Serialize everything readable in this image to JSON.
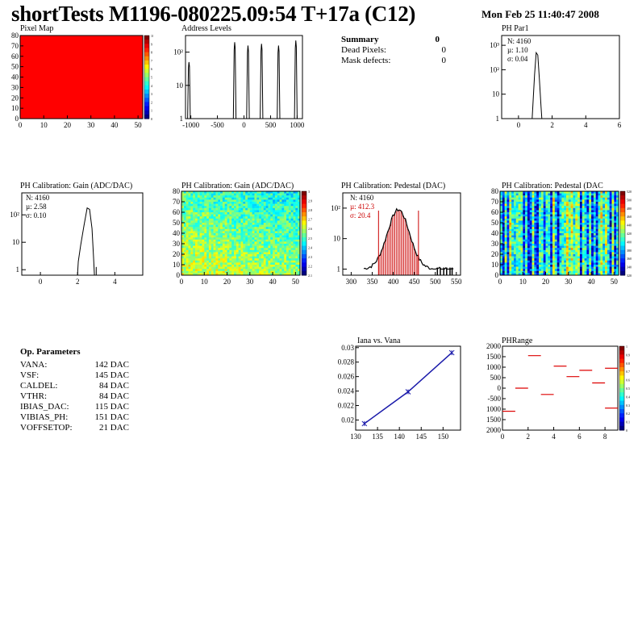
{
  "header": {
    "title": "shortTests M1196-080225.09:54 T+17a (C12)",
    "date": "Mon Feb 25 11:40:47 2008"
  },
  "summary": {
    "title": "Summary",
    "title_value": "0",
    "rows": [
      {
        "label": "Dead Pixels:",
        "value": "0"
      },
      {
        "label": "Mask defects:",
        "value": "0"
      }
    ]
  },
  "op_parameters": {
    "title": "Op. Parameters",
    "rows": [
      {
        "label": "VANA:",
        "value": "142 DAC"
      },
      {
        "label": "VSF:",
        "value": "145 DAC"
      },
      {
        "label": "CALDEL:",
        "value": "84 DAC"
      },
      {
        "label": "VTHR:",
        "value": "84 DAC"
      },
      {
        "label": "IBIAS_DAC:",
        "value": "115 DAC"
      },
      {
        "label": "VIBIAS_PH:",
        "value": "151 DAC"
      },
      {
        "label": "VOFFSETOP:",
        "value": "21 DAC"
      }
    ]
  },
  "chart_data": [
    {
      "id": "pixel_map",
      "type": "heatmap",
      "title": "Pixel Map",
      "x_ticks": [
        "0",
        "10",
        "20",
        "30",
        "40",
        "50"
      ],
      "y_ticks": [
        "0",
        "10",
        "20",
        "30",
        "40",
        "50",
        "60",
        "70",
        "80"
      ],
      "xlim": [
        0,
        52
      ],
      "ylim": [
        0,
        80
      ],
      "fill_color": "#ff0000",
      "palette_labels": [
        "10",
        "9",
        "8",
        "7",
        "6",
        "5",
        "4",
        "3",
        "2",
        "1",
        "0"
      ]
    },
    {
      "id": "address_levels",
      "type": "line",
      "title": "Address Levels",
      "y_scale": "log",
      "x_ticks": [
        "-1000",
        "-500",
        "0",
        "500",
        "1000"
      ],
      "y_ticks": [
        "1",
        "10",
        "10²"
      ],
      "xlim": [
        -1100,
        1100
      ],
      "ylim_log": [
        0,
        2.5
      ],
      "peaks": [
        {
          "x": -1035,
          "h": 1.7
        },
        {
          "x": -175,
          "h": 2.3
        },
        {
          "x": 75,
          "h": 2.2
        },
        {
          "x": 330,
          "h": 2.25
        },
        {
          "x": 650,
          "h": 2.2
        },
        {
          "x": 975,
          "h": 2.35
        }
      ]
    },
    {
      "id": "ph_par1",
      "type": "bar",
      "title": "PH Par1",
      "y_scale": "log",
      "x_ticks": [
        "0",
        "2",
        "4",
        "6"
      ],
      "y_ticks": [
        "1",
        "10",
        "10²",
        "10³"
      ],
      "xlim": [
        -1,
        6
      ],
      "ylim_log": [
        0,
        3.4
      ],
      "stats": [
        "N: 4160",
        "µ: 1.10",
        "σ: 0.04"
      ],
      "peak_center": 1.1,
      "peak_height_log": 2.7
    },
    {
      "id": "ph_gain",
      "type": "bar",
      "title": "PH Calibration: Gain (ADC/DAC)",
      "y_scale": "log",
      "x_ticks": [
        "0",
        "2",
        "4"
      ],
      "y_ticks": [
        "1",
        "10",
        "10²"
      ],
      "xlim": [
        -1,
        5.5
      ],
      "ylim_log": [
        -0.2,
        2.8
      ],
      "stats": [
        "N: 4160",
        "µ: 2.58",
        "σ: 0.10"
      ],
      "peak_center": 2.6,
      "peak_height_log": 2.25
    },
    {
      "id": "ph_gain_map",
      "type": "heatmap",
      "title": "PH Calibration: Gain (ADC/DAC)",
      "x_ticks": [
        "0",
        "10",
        "20",
        "30",
        "40",
        "50"
      ],
      "y_ticks": [
        "0",
        "10",
        "20",
        "30",
        "40",
        "50",
        "60",
        "70",
        "80"
      ],
      "xlim": [
        0,
        52
      ],
      "ylim": [
        0,
        80
      ],
      "palette_labels": [
        "3",
        "2.9",
        "2.8",
        "2.7",
        "2.6",
        "2.5",
        "2.4",
        "2.3",
        "2.2",
        "2.1"
      ]
    },
    {
      "id": "ph_pedestal",
      "type": "bar",
      "title": "PH Calibration: Pedestal (DAC)",
      "y_scale": "log",
      "x_ticks": [
        "300",
        "350",
        "400",
        "450",
        "500",
        "550"
      ],
      "y_ticks": [
        "1",
        "10",
        "10²"
      ],
      "xlim": [
        280,
        560
      ],
      "ylim_log": [
        -0.2,
        2.5
      ],
      "stats": [
        "N: 4160"
      ],
      "stats_red": [
        "µ: 412.3",
        "σ: 20.4"
      ],
      "mean": 412.3,
      "sigma": 20.4,
      "peak_height_log": 1.95,
      "cut_lines": [
        365,
        460
      ]
    },
    {
      "id": "ph_pedestal_map",
      "type": "heatmap",
      "title": "PH Calibration: Pedestal (DAC",
      "x_ticks": [
        "0",
        "10",
        "20",
        "30",
        "40",
        "50"
      ],
      "y_ticks": [
        "0",
        "10",
        "20",
        "30",
        "40",
        "50",
        "60",
        "70",
        "80"
      ],
      "xlim": [
        0,
        52
      ],
      "ylim": [
        0,
        80
      ],
      "palette_labels": [
        "520",
        "500",
        "480",
        "460",
        "440",
        "420",
        "400",
        "380",
        "360",
        "340",
        "320"
      ]
    },
    {
      "id": "iana_vana",
      "type": "line",
      "title": "Iana vs. Vana",
      "x": [
        132,
        142,
        152
      ],
      "y": [
        0.0195,
        0.0239,
        0.0293
      ],
      "x_ticks": [
        "130",
        "135",
        "140",
        "145",
        "150"
      ],
      "y_ticks": [
        "0.02",
        "0.022",
        "0.024",
        "0.026",
        "0.028",
        "0.03"
      ],
      "xlim": [
        130,
        154
      ],
      "ylim": [
        0.0186,
        0.0302
      ],
      "line_color": "#1a1aaa"
    },
    {
      "id": "ph_range",
      "type": "scatter",
      "title": "PHRange",
      "x_ticks": [
        "0",
        "2",
        "4",
        "6",
        "8"
      ],
      "y_ticks": [
        "2000",
        "1500",
        "1000",
        "500",
        "0",
        "-500",
        "1000",
        "1500",
        "2000"
      ],
      "xlim": [
        0,
        9
      ],
      "ylim": [
        -2000,
        2000
      ],
      "segments": [
        {
          "x0": 0,
          "x1": 1,
          "y": -1100
        },
        {
          "x0": 1,
          "x1": 2,
          "y": 0
        },
        {
          "x0": 2,
          "x1": 3,
          "y": 1550
        },
        {
          "x0": 3,
          "x1": 4,
          "y": -300
        },
        {
          "x0": 4,
          "x1": 5,
          "y": 1050
        },
        {
          "x0": 5,
          "x1": 6,
          "y": 550
        },
        {
          "x0": 6,
          "x1": 7,
          "y": 850
        },
        {
          "x0": 7,
          "x1": 8,
          "y": 250
        },
        {
          "x0": 8,
          "x1": 9,
          "y": 950
        },
        {
          "x0": 8,
          "x1": 9,
          "y": -950
        }
      ],
      "segment_color": "#dd0000",
      "palette_labels": [
        "1",
        "0.9",
        "0.8",
        "0.7",
        "0.6",
        "0.5",
        "0.4",
        "0.3",
        "0.2",
        "0.1",
        "0"
      ]
    }
  ]
}
